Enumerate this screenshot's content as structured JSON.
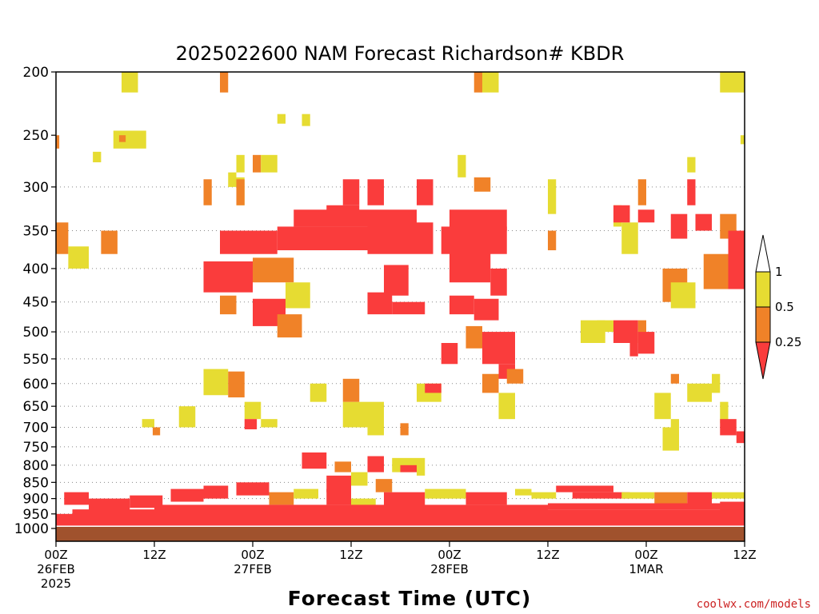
{
  "chart_data": {
    "type": "heatmap",
    "title": "2025022600 NAM Forecast Richardson# KBDR",
    "xlabel": "Forecast Time (UTC)",
    "ylabel": "",
    "credit": "coolwx.com/models",
    "y_levels": [
      200,
      250,
      300,
      350,
      400,
      450,
      500,
      550,
      600,
      650,
      700,
      750,
      800,
      850,
      900,
      950,
      1000
    ],
    "y_labels": [
      "200",
      "250",
      "300",
      "350",
      "400",
      "450",
      "500",
      "550",
      "600",
      "650",
      "700",
      "750",
      "800",
      "850",
      "900",
      "950",
      "1000"
    ],
    "ylim": [
      1000,
      200
    ],
    "y_scale": "log-pressure",
    "xlim_hours": [
      0,
      84
    ],
    "x_ticks": [
      {
        "hour": 0,
        "l1": "00Z",
        "l2": "26FEB",
        "l3": "2025"
      },
      {
        "hour": 12,
        "l1": "12Z",
        "l2": "",
        "l3": ""
      },
      {
        "hour": 24,
        "l1": "00Z",
        "l2": "27FEB",
        "l3": ""
      },
      {
        "hour": 36,
        "l1": "12Z",
        "l2": "",
        "l3": ""
      },
      {
        "hour": 48,
        "l1": "00Z",
        "l2": "28FEB",
        "l3": ""
      },
      {
        "hour": 60,
        "l1": "12Z",
        "l2": "",
        "l3": ""
      },
      {
        "hour": 72,
        "l1": "00Z",
        "l2": "1MAR",
        "l3": ""
      },
      {
        "hour": 84,
        "l1": "12Z",
        "l2": "",
        "l3": ""
      }
    ],
    "grid_levels": [
      300,
      350,
      400,
      450,
      500,
      550,
      600,
      650,
      700,
      750,
      800,
      850,
      900,
      950
    ],
    "colorbar": {
      "labels": [
        "1",
        "0.5",
        "0.25"
      ],
      "colors": [
        "#ffffff",
        "#e6dc32",
        "#f08228",
        "#fa3c3c"
      ]
    },
    "ground_color": "#a0522d",
    "cell_colors": {
      "y": "#e6dc32",
      "o": "#f08228",
      "r": "#fa3c3c"
    },
    "cells": [
      [
        "y",
        8,
        10,
        200,
        215
      ],
      [
        "o",
        20,
        21,
        200,
        215
      ],
      [
        "o",
        51,
        52,
        200,
        215
      ],
      [
        "y",
        52,
        54,
        200,
        215
      ],
      [
        "y",
        81,
        84,
        200,
        215
      ],
      [
        "y",
        27,
        28,
        232,
        240
      ],
      [
        "y",
        30,
        31,
        232,
        242
      ],
      [
        "y",
        7,
        11,
        246,
        262
      ],
      [
        "o",
        7.7,
        8.5,
        250,
        256
      ],
      [
        "o",
        0,
        0.4,
        250,
        262
      ],
      [
        "y",
        83.5,
        84,
        250,
        258
      ],
      [
        "y",
        4.5,
        5.5,
        265,
        275
      ],
      [
        "y",
        22,
        23,
        268,
        285
      ],
      [
        "o",
        24,
        25,
        268,
        285
      ],
      [
        "y",
        25,
        27,
        268,
        285
      ],
      [
        "y",
        49,
        50,
        268,
        290
      ],
      [
        "y",
        77,
        78,
        270,
        285
      ],
      [
        "y",
        21,
        22,
        285,
        300
      ],
      [
        "o",
        51,
        53,
        290,
        305
      ],
      [
        "y",
        22,
        23,
        290,
        320
      ],
      [
        "o",
        18,
        19,
        292,
        320
      ],
      [
        "o",
        22,
        23,
        292,
        320
      ],
      [
        "r",
        35,
        37,
        292,
        320
      ],
      [
        "r",
        38,
        40,
        292,
        320
      ],
      [
        "r",
        44,
        46,
        292,
        320
      ],
      [
        "o",
        71,
        72,
        292,
        320
      ],
      [
        "r",
        77,
        78,
        292,
        320
      ],
      [
        "y",
        60,
        61,
        292,
        330
      ],
      [
        "r",
        29,
        44,
        325,
        345
      ],
      [
        "r",
        33,
        37,
        320,
        340
      ],
      [
        "r",
        48,
        55,
        325,
        350
      ],
      [
        "r",
        20,
        27,
        350,
        380
      ],
      [
        "r",
        27,
        38,
        345,
        375
      ],
      [
        "r",
        38,
        46,
        340,
        380
      ],
      [
        "r",
        47,
        55,
        345,
        380
      ],
      [
        "r",
        48,
        53,
        360,
        420
      ],
      [
        "o",
        24,
        29,
        385,
        420
      ],
      [
        "r",
        18,
        24,
        390,
        435
      ],
      [
        "r",
        40,
        43,
        395,
        440
      ],
      [
        "r",
        53,
        55,
        400,
        440
      ],
      [
        "o",
        0,
        1.5,
        340,
        380
      ],
      [
        "y",
        1.5,
        4,
        370,
        400
      ],
      [
        "o",
        5.5,
        7.5,
        350,
        380
      ],
      [
        "r",
        75,
        77,
        330,
        360
      ],
      [
        "r",
        78,
        80,
        330,
        350
      ],
      [
        "o",
        81,
        83,
        330,
        360
      ],
      [
        "r",
        82,
        84,
        350,
        430
      ],
      [
        "o",
        79,
        82,
        380,
        430
      ],
      [
        "y",
        69,
        71,
        340,
        380
      ],
      [
        "y",
        68,
        69,
        320,
        345
      ],
      [
        "o",
        74,
        77,
        400,
        450
      ],
      [
        "y",
        75,
        78,
        420,
        460
      ],
      [
        "r",
        68,
        70,
        320,
        340
      ],
      [
        "r",
        71,
        73,
        325,
        340
      ],
      [
        "o",
        60,
        61,
        350,
        375
      ],
      [
        "r",
        24,
        28,
        445,
        490
      ],
      [
        "o",
        27,
        30,
        470,
        510
      ],
      [
        "y",
        28,
        31,
        420,
        460
      ],
      [
        "o",
        20,
        22,
        440,
        470
      ],
      [
        "r",
        38,
        41,
        435,
        470
      ],
      [
        "r",
        41,
        45,
        450,
        470
      ],
      [
        "r",
        48,
        51,
        440,
        470
      ],
      [
        "r",
        51,
        54,
        445,
        480
      ],
      [
        "o",
        50,
        52,
        490,
        530
      ],
      [
        "r",
        52,
        56,
        500,
        560
      ],
      [
        "r",
        54,
        56,
        560,
        590
      ],
      [
        "r",
        47,
        49,
        520,
        560
      ],
      [
        "o",
        55,
        57,
        570,
        600
      ],
      [
        "y",
        64,
        67,
        480,
        520
      ],
      [
        "r",
        68,
        71,
        480,
        520
      ],
      [
        "o",
        71,
        72,
        480,
        520
      ],
      [
        "r",
        71,
        73,
        500,
        540
      ],
      [
        "r",
        70,
        71,
        520,
        545
      ],
      [
        "y",
        66,
        68,
        480,
        500
      ],
      [
        "y",
        18,
        21,
        570,
        625
      ],
      [
        "o",
        21,
        23,
        575,
        630
      ],
      [
        "y",
        23,
        25,
        640,
        680
      ],
      [
        "r",
        23,
        24.5,
        680,
        705
      ],
      [
        "y",
        15,
        17,
        650,
        700
      ],
      [
        "y",
        10.5,
        12,
        680,
        700
      ],
      [
        "o",
        11.8,
        12.7,
        700,
        720
      ],
      [
        "y",
        25,
        27,
        680,
        700
      ],
      [
        "y",
        31,
        33,
        600,
        640
      ],
      [
        "y",
        35,
        38,
        640,
        700
      ],
      [
        "o",
        35,
        37,
        590,
        640
      ],
      [
        "y",
        38,
        40,
        640,
        720
      ],
      [
        "o",
        42,
        43,
        690,
        720
      ],
      [
        "y",
        44,
        47,
        600,
        640
      ],
      [
        "r",
        45,
        47,
        600,
        620
      ],
      [
        "o",
        52,
        54,
        580,
        620
      ],
      [
        "y",
        54,
        56,
        620,
        680
      ],
      [
        "y",
        77,
        80,
        600,
        640
      ],
      [
        "y",
        80,
        81,
        580,
        620
      ],
      [
        "y",
        81,
        82,
        640,
        690
      ],
      [
        "r",
        81,
        83,
        680,
        720
      ],
      [
        "r",
        83,
        84,
        710,
        740
      ],
      [
        "y",
        73,
        75,
        620,
        680
      ],
      [
        "y",
        75,
        76,
        680,
        720
      ],
      [
        "y",
        74,
        76,
        700,
        760
      ],
      [
        "o",
        75,
        76,
        580,
        600
      ],
      [
        "r",
        30,
        33,
        765,
        810
      ],
      [
        "o",
        34,
        36,
        790,
        820
      ],
      [
        "r",
        38,
        40,
        775,
        820
      ],
      [
        "y",
        36,
        38,
        820,
        860
      ],
      [
        "r",
        33,
        36,
        830,
        880
      ],
      [
        "o",
        39,
        41,
        840,
        880
      ],
      [
        "y",
        41,
        44,
        780,
        820
      ],
      [
        "r",
        42,
        44,
        800,
        820
      ],
      [
        "y",
        44,
        45,
        780,
        830
      ],
      [
        "r",
        1,
        4,
        880,
        920
      ],
      [
        "r",
        4,
        9,
        900,
        940
      ],
      [
        "r",
        9,
        13,
        890,
        930
      ],
      [
        "r",
        14,
        18,
        870,
        910
      ],
      [
        "r",
        18,
        21,
        860,
        900
      ],
      [
        "r",
        22,
        26,
        850,
        890
      ],
      [
        "o",
        26,
        29,
        880,
        920
      ],
      [
        "y",
        29,
        32,
        870,
        900
      ],
      [
        "r",
        33,
        36,
        870,
        920
      ],
      [
        "y",
        36,
        39,
        900,
        940
      ],
      [
        "r",
        40,
        45,
        880,
        930
      ],
      [
        "y",
        45,
        50,
        870,
        900
      ],
      [
        "r",
        50,
        55,
        880,
        920
      ],
      [
        "y",
        56,
        58,
        870,
        890
      ],
      [
        "y",
        58,
        61,
        880,
        900
      ],
      [
        "r",
        61,
        68,
        860,
        880
      ],
      [
        "r",
        63,
        70,
        880,
        900
      ],
      [
        "y",
        69,
        73,
        880,
        900
      ],
      [
        "o",
        73,
        77,
        880,
        930
      ],
      [
        "r",
        77,
        80,
        880,
        920
      ],
      [
        "y",
        80,
        84,
        880,
        900
      ],
      [
        "r",
        81,
        84,
        910,
        940
      ],
      [
        "r",
        0,
        84,
        950,
        990
      ],
      [
        "r",
        2,
        84,
        935,
        955
      ],
      [
        "r",
        12,
        60,
        920,
        940
      ],
      [
        "r",
        60,
        84,
        915,
        935
      ]
    ]
  }
}
